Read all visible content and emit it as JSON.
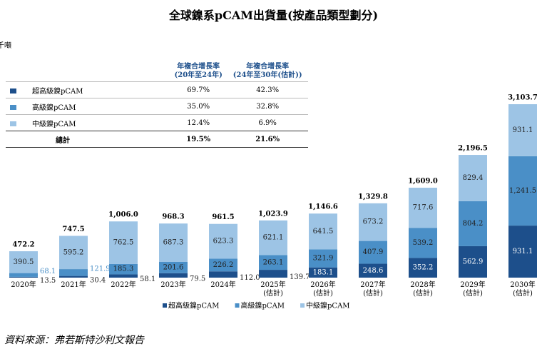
{
  "chart_data": {
    "type": "bar",
    "stacked": true,
    "title": "全球鎳系pCAM出貨量(按產品類型劃分)",
    "unit": "千噸",
    "categories": [
      "2020年",
      "2021年",
      "2022年",
      "2023年",
      "2024年",
      "2025年\n(估計)",
      "2026年\n(估計)",
      "2027年\n(估計)",
      "2028年\n(估計)",
      "2029年\n(估計)",
      "2030年\n(估計)"
    ],
    "series": [
      {
        "name": "超高級鎳pCAM",
        "color": "#1d4f8b",
        "values": [
          13.5,
          30.4,
          58.1,
          79.5,
          112.0,
          139.7,
          183.1,
          248.6,
          352.2,
          562.9,
          931.1
        ],
        "value_labels": [
          "13.5",
          "30.4",
          "58.1",
          "79.5",
          "112.0",
          "139.7",
          "183.1",
          "248.6",
          "352.2",
          "562.9",
          "931.1"
        ]
      },
      {
        "name": "高級鎳pCAM",
        "color": "#4a8fc7",
        "values": [
          68.1,
          121.9,
          185.3,
          201.6,
          226.2,
          263.1,
          321.9,
          407.9,
          539.2,
          804.2,
          1241.5
        ],
        "value_labels": [
          "68.1",
          "121.9",
          "185.3",
          "201.6",
          "226.2",
          "263.1",
          "321.9",
          "407.9",
          "539.2",
          "804.2",
          "1,241.5"
        ]
      },
      {
        "name": "中級鎳pCAM",
        "color": "#9dc4e5",
        "values": [
          390.5,
          595.2,
          762.5,
          687.3,
          623.3,
          621.1,
          641.5,
          673.2,
          717.6,
          829.4,
          931.1
        ],
        "value_labels": [
          "390.5",
          "595.2",
          "762.5",
          "687.3",
          "623.3",
          "621.1",
          "641.5",
          "673.2",
          "717.6",
          "829.4",
          "931.1"
        ]
      }
    ],
    "totals": {
      "values": [
        472.2,
        747.5,
        1006.0,
        968.3,
        961.5,
        1023.9,
        1146.6,
        1329.8,
        1609.0,
        2196.5,
        3103.7
      ],
      "value_labels": [
        "472.2",
        "747.5",
        "1,006.0",
        "968.3",
        "961.5",
        "1,023.9",
        "1,146.6",
        "1,329.8",
        "1,609.0",
        "2,196.5",
        "3,103.7"
      ]
    }
  },
  "table": {
    "header": [
      "年複合增長率\n(20年至24年)",
      "年複合增長率\n(24年至30年(估計))"
    ],
    "rows": [
      [
        "超高級鎳pCAM",
        "69.7%",
        "42.3%"
      ],
      [
        "高級鎳pCAM",
        "35.0%",
        "32.8%"
      ],
      [
        "中級鎳pCAM",
        "12.4%",
        "6.9%"
      ],
      [
        "總計",
        "19.5%",
        "21.6%"
      ]
    ]
  },
  "source": "資料來源：弗若斯特沙利文報告"
}
